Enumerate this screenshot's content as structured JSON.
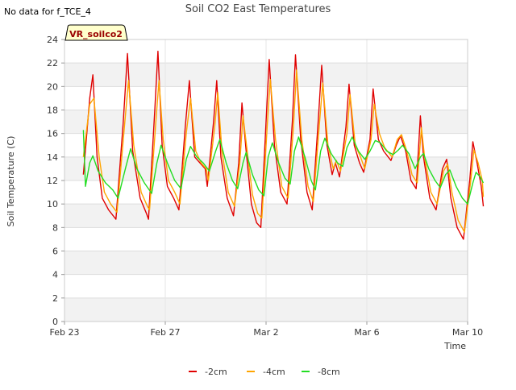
{
  "note": "No data for f_TCE_4",
  "chart_data": {
    "type": "line",
    "title": "Soil CO2 East Temperatures",
    "xlabel": "Time",
    "ylabel": "Soil Temperature (C)",
    "badge": "VR_soilco2",
    "ylim": [
      0,
      24
    ],
    "yticks": [
      0,
      2,
      4,
      6,
      8,
      10,
      12,
      14,
      16,
      18,
      20,
      22,
      24
    ],
    "xlim": [
      "2024-02-23",
      "2024-03-10"
    ],
    "xticks": [
      {
        "date": "2024-02-23",
        "label": "Feb 23"
      },
      {
        "date": "2024-02-27",
        "label": "Feb 27"
      },
      {
        "date": "2024-03-02",
        "label": "Mar 2"
      },
      {
        "date": "2024-03-06",
        "label": "Mar 6"
      },
      {
        "date": "2024-03-10",
        "label": "Mar 10"
      }
    ],
    "grid": true,
    "legend_position": "bottom",
    "series": [
      {
        "name": "-2cm",
        "color": "#e00000",
        "points": [
          [
            "2024-02-23T18:00",
            12.5
          ],
          [
            "2024-02-24T00:00",
            19.0
          ],
          [
            "2024-02-24T03:00",
            21.0
          ],
          [
            "2024-02-24T07:00",
            14.0
          ],
          [
            "2024-02-24T12:00",
            10.5
          ],
          [
            "2024-02-24T18:00",
            9.5
          ],
          [
            "2024-02-25T01:00",
            8.7
          ],
          [
            "2024-02-25T08:00",
            17.0
          ],
          [
            "2024-02-25T12:00",
            22.8
          ],
          [
            "2024-02-25T17:00",
            14.5
          ],
          [
            "2024-02-26T00:00",
            10.5
          ],
          [
            "2024-02-26T06:00",
            9.2
          ],
          [
            "2024-02-26T08:00",
            8.7
          ],
          [
            "2024-02-26T14:00",
            18.0
          ],
          [
            "2024-02-26T17:00",
            23.0
          ],
          [
            "2024-02-26T21:00",
            15.0
          ],
          [
            "2024-02-27T02:00",
            11.5
          ],
          [
            "2024-02-27T08:00",
            10.5
          ],
          [
            "2024-02-27T13:00",
            9.5
          ],
          [
            "2024-02-27T19:00",
            16.5
          ],
          [
            "2024-02-27T23:00",
            20.5
          ],
          [
            "2024-02-28T04:00",
            14.0
          ],
          [
            "2024-02-28T09:00",
            13.5
          ],
          [
            "2024-02-28T14:00",
            13.0
          ],
          [
            "2024-02-28T16:00",
            11.5
          ],
          [
            "2024-02-28T22:00",
            17.0
          ],
          [
            "2024-02-29T01:00",
            20.5
          ],
          [
            "2024-02-29T05:00",
            14.0
          ],
          [
            "2024-02-29T11:00",
            10.5
          ],
          [
            "2024-02-29T17:00",
            9.0
          ],
          [
            "2024-02-29T22:00",
            13.5
          ],
          [
            "2024-03-01T01:00",
            18.6
          ],
          [
            "2024-03-01T05:00",
            14.5
          ],
          [
            "2024-03-01T10:00",
            10.0
          ],
          [
            "2024-03-01T15:00",
            8.4
          ],
          [
            "2024-03-01T19:00",
            8.0
          ],
          [
            "2024-03-02T00:00",
            17.0
          ],
          [
            "2024-03-02T03:00",
            22.3
          ],
          [
            "2024-03-02T08:00",
            15.0
          ],
          [
            "2024-03-02T14:00",
            11.0
          ],
          [
            "2024-03-02T20:00",
            10.0
          ],
          [
            "2024-03-03T01:00",
            17.0
          ],
          [
            "2024-03-03T04:00",
            22.7
          ],
          [
            "2024-03-03T09:00",
            15.5
          ],
          [
            "2024-03-03T15:00",
            11.0
          ],
          [
            "2024-03-03T20:00",
            9.5
          ],
          [
            "2024-03-04T02:00",
            17.5
          ],
          [
            "2024-03-04T05:00",
            21.8
          ],
          [
            "2024-03-04T10:00",
            15.0
          ],
          [
            "2024-03-04T15:00",
            12.5
          ],
          [
            "2024-03-04T18:00",
            13.5
          ],
          [
            "2024-03-04T22:00",
            12.3
          ],
          [
            "2024-03-05T04:00",
            16.5
          ],
          [
            "2024-03-05T07:00",
            20.2
          ],
          [
            "2024-03-05T12:00",
            15.0
          ],
          [
            "2024-03-05T17:00",
            13.5
          ],
          [
            "2024-03-05T21:00",
            12.7
          ],
          [
            "2024-03-06T03:00",
            15.5
          ],
          [
            "2024-03-06T06:00",
            19.8
          ],
          [
            "2024-03-06T11:00",
            15.5
          ],
          [
            "2024-03-06T16:00",
            14.5
          ],
          [
            "2024-03-06T23:00",
            13.7
          ],
          [
            "2024-03-07T04:00",
            15.0
          ],
          [
            "2024-03-07T08:00",
            15.8
          ],
          [
            "2024-03-07T13:00",
            14.5
          ],
          [
            "2024-03-07T18:00",
            12.0
          ],
          [
            "2024-03-07T23:00",
            11.3
          ],
          [
            "2024-03-08T03:00",
            17.5
          ],
          [
            "2024-03-08T06:00",
            14.0
          ],
          [
            "2024-03-08T12:00",
            10.5
          ],
          [
            "2024-03-08T18:00",
            9.5
          ],
          [
            "2024-03-09T00:00",
            13.0
          ],
          [
            "2024-03-09T04:00",
            13.8
          ],
          [
            "2024-03-09T08:00",
            10.5
          ],
          [
            "2024-03-09T14:00",
            8.0
          ],
          [
            "2024-03-09T20:00",
            7.0
          ],
          [
            "2024-03-10T02:00",
            12.0
          ],
          [
            "2024-03-10T05:00",
            15.3
          ],
          [
            "2024-03-10T09:00",
            13.5
          ],
          [
            "2024-03-10T13:00",
            11.5
          ],
          [
            "2024-03-10T15:00",
            9.8
          ]
        ]
      },
      {
        "name": "-4cm",
        "color": "#ffa500",
        "points": [
          [
            "2024-02-23T18:00",
            14.0
          ],
          [
            "2024-02-24T00:00",
            18.5
          ],
          [
            "2024-02-24T04:00",
            19.0
          ],
          [
            "2024-02-24T09:00",
            14.0
          ],
          [
            "2024-02-24T14:00",
            11.0
          ],
          [
            "2024-02-24T20:00",
            10.0
          ],
          [
            "2024-02-25T02:00",
            9.3
          ],
          [
            "2024-02-25T09:00",
            16.5
          ],
          [
            "2024-02-25T13:00",
            20.5
          ],
          [
            "2024-02-25T18:00",
            15.0
          ],
          [
            "2024-02-26T01:00",
            11.0
          ],
          [
            "2024-02-26T07:00",
            9.8
          ],
          [
            "2024-02-26T09:00",
            9.5
          ],
          [
            "2024-02-26T15:00",
            17.0
          ],
          [
            "2024-02-26T18:00",
            20.5
          ],
          [
            "2024-02-26T22:00",
            15.5
          ],
          [
            "2024-02-27T03:00",
            12.0
          ],
          [
            "2024-02-27T09:00",
            11.0
          ],
          [
            "2024-02-27T14:00",
            10.0
          ],
          [
            "2024-02-27T20:00",
            16.0
          ],
          [
            "2024-02-28T00:00",
            19.0
          ],
          [
            "2024-02-28T05:00",
            14.5
          ],
          [
            "2024-02-28T10:00",
            13.5
          ],
          [
            "2024-02-28T15:00",
            13.0
          ],
          [
            "2024-02-28T17:00",
            12.0
          ],
          [
            "2024-02-28T23:00",
            16.5
          ],
          [
            "2024-02-29T02:00",
            19.5
          ],
          [
            "2024-02-29T06:00",
            14.5
          ],
          [
            "2024-02-29T12:00",
            11.0
          ],
          [
            "2024-02-29T18:00",
            9.8
          ],
          [
            "2024-02-29T23:00",
            13.5
          ],
          [
            "2024-03-01T02:00",
            17.5
          ],
          [
            "2024-03-01T06:00",
            14.5
          ],
          [
            "2024-03-01T11:00",
            10.8
          ],
          [
            "2024-03-01T16:00",
            9.2
          ],
          [
            "2024-03-01T20:00",
            8.8
          ],
          [
            "2024-03-02T01:00",
            16.5
          ],
          [
            "2024-03-02T04:00",
            20.6
          ],
          [
            "2024-03-02T09:00",
            15.5
          ],
          [
            "2024-03-02T15:00",
            11.5
          ],
          [
            "2024-03-02T21:00",
            10.5
          ],
          [
            "2024-03-03T02:00",
            16.5
          ],
          [
            "2024-03-03T05:00",
            21.4
          ],
          [
            "2024-03-03T10:00",
            15.5
          ],
          [
            "2024-03-03T16:00",
            11.5
          ],
          [
            "2024-03-03T21:00",
            10.2
          ],
          [
            "2024-03-04T03:00",
            17.0
          ],
          [
            "2024-03-04T06:00",
            20.3
          ],
          [
            "2024-03-04T11:00",
            15.0
          ],
          [
            "2024-03-04T16:00",
            13.0
          ],
          [
            "2024-03-04T19:00",
            13.7
          ],
          [
            "2024-03-04T23:00",
            12.8
          ],
          [
            "2024-03-05T05:00",
            16.0
          ],
          [
            "2024-03-05T08:00",
            19.3
          ],
          [
            "2024-03-05T13:00",
            15.0
          ],
          [
            "2024-03-05T18:00",
            14.0
          ],
          [
            "2024-03-05T22:00",
            13.0
          ],
          [
            "2024-03-06T04:00",
            15.5
          ],
          [
            "2024-03-06T07:00",
            18.5
          ],
          [
            "2024-03-06T12:00",
            16.0
          ],
          [
            "2024-03-06T17:00",
            14.8
          ],
          [
            "2024-03-07T00:00",
            14.0
          ],
          [
            "2024-03-07T05:00",
            15.5
          ],
          [
            "2024-03-07T09:00",
            15.9
          ],
          [
            "2024-03-07T14:00",
            14.5
          ],
          [
            "2024-03-07T19:00",
            12.5
          ],
          [
            "2024-03-08T00:00",
            11.8
          ],
          [
            "2024-03-08T04:00",
            16.5
          ],
          [
            "2024-03-08T07:00",
            14.0
          ],
          [
            "2024-03-08T13:00",
            11.0
          ],
          [
            "2024-03-08T19:00",
            10.0
          ],
          [
            "2024-03-09T01:00",
            12.8
          ],
          [
            "2024-03-09T05:00",
            13.4
          ],
          [
            "2024-03-09T09:00",
            11.0
          ],
          [
            "2024-03-09T15:00",
            8.6
          ],
          [
            "2024-03-09T21:00",
            7.6
          ],
          [
            "2024-03-10T03:00",
            12.0
          ],
          [
            "2024-03-10T06:00",
            14.6
          ],
          [
            "2024-03-10T10:00",
            13.5
          ],
          [
            "2024-03-10T14:00",
            12.0
          ],
          [
            "2024-03-10T15:00",
            10.6
          ]
        ]
      },
      {
        "name": "-8cm",
        "color": "#22dd22",
        "points": [
          [
            "2024-02-23T18:00",
            16.3
          ],
          [
            "2024-02-23T20:00",
            11.5
          ],
          [
            "2024-02-24T00:00",
            13.5
          ],
          [
            "2024-02-24T03:00",
            14.1
          ],
          [
            "2024-02-24T08:00",
            12.8
          ],
          [
            "2024-02-24T15:00",
            11.8
          ],
          [
            "2024-02-24T22:00",
            11.2
          ],
          [
            "2024-02-25T03:00",
            10.5
          ],
          [
            "2024-02-25T10:00",
            13.0
          ],
          [
            "2024-02-25T15:00",
            14.7
          ],
          [
            "2024-02-25T21:00",
            13.0
          ],
          [
            "2024-02-26T04:00",
            11.8
          ],
          [
            "2024-02-26T11:00",
            10.9
          ],
          [
            "2024-02-26T16:00",
            13.5
          ],
          [
            "2024-02-26T20:00",
            15.0
          ],
          [
            "2024-02-27T02:00",
            13.5
          ],
          [
            "2024-02-27T09:00",
            12.0
          ],
          [
            "2024-02-27T15:00",
            11.3
          ],
          [
            "2024-02-27T20:00",
            13.8
          ],
          [
            "2024-02-28T00:00",
            14.9
          ],
          [
            "2024-02-28T06:00",
            14.0
          ],
          [
            "2024-02-28T12:00",
            13.5
          ],
          [
            "2024-02-28T18:00",
            12.8
          ],
          [
            "2024-02-29T00:00",
            14.5
          ],
          [
            "2024-02-29T04:00",
            15.5
          ],
          [
            "2024-02-29T10:00",
            13.5
          ],
          [
            "2024-02-29T16:00",
            12.0
          ],
          [
            "2024-02-29T21:00",
            11.3
          ],
          [
            "2024-03-01T02:00",
            13.5
          ],
          [
            "2024-03-01T05:00",
            14.4
          ],
          [
            "2024-03-01T11:00",
            12.5
          ],
          [
            "2024-03-01T17:00",
            11.2
          ],
          [
            "2024-03-01T22:00",
            10.7
          ],
          [
            "2024-03-02T02:00",
            14.0
          ],
          [
            "2024-03-02T06:00",
            15.2
          ],
          [
            "2024-03-02T12:00",
            13.5
          ],
          [
            "2024-03-02T18:00",
            12.2
          ],
          [
            "2024-03-02T23:00",
            11.7
          ],
          [
            "2024-03-03T03:00",
            14.5
          ],
          [
            "2024-03-03T07:00",
            15.7
          ],
          [
            "2024-03-03T13:00",
            14.0
          ],
          [
            "2024-03-03T19:00",
            12.0
          ],
          [
            "2024-03-03T23:00",
            11.2
          ],
          [
            "2024-03-04T04:00",
            14.5
          ],
          [
            "2024-03-04T08:00",
            15.6
          ],
          [
            "2024-03-04T14:00",
            14.3
          ],
          [
            "2024-03-04T20:00",
            13.5
          ],
          [
            "2024-03-05T01:00",
            13.2
          ],
          [
            "2024-03-05T05:00",
            14.8
          ],
          [
            "2024-03-05T10:00",
            15.7
          ],
          [
            "2024-03-05T16:00",
            14.5
          ],
          [
            "2024-03-05T22:00",
            13.8
          ],
          [
            "2024-03-06T03:00",
            14.5
          ],
          [
            "2024-03-06T08:00",
            15.4
          ],
          [
            "2024-03-06T13:00",
            15.2
          ],
          [
            "2024-03-06T19:00",
            14.5
          ],
          [
            "2024-03-07T01:00",
            14.2
          ],
          [
            "2024-03-07T06:00",
            14.6
          ],
          [
            "2024-03-07T10:00",
            15.0
          ],
          [
            "2024-03-07T16:00",
            14.3
          ],
          [
            "2024-03-07T22:00",
            13.0
          ],
          [
            "2024-03-08T03:00",
            14.0
          ],
          [
            "2024-03-08T06:00",
            14.3
          ],
          [
            "2024-03-08T11:00",
            13.0
          ],
          [
            "2024-03-08T17:00",
            12.0
          ],
          [
            "2024-03-08T22:00",
            11.4
          ],
          [
            "2024-03-09T03:00",
            12.5
          ],
          [
            "2024-03-09T07:00",
            12.9
          ],
          [
            "2024-03-09T13:00",
            11.5
          ],
          [
            "2024-03-09T19:00",
            10.5
          ],
          [
            "2024-03-10T00:00",
            10.0
          ],
          [
            "2024-03-10T05:00",
            11.8
          ],
          [
            "2024-03-10T08:00",
            12.7
          ],
          [
            "2024-03-10T12:00",
            12.3
          ],
          [
            "2024-03-10T15:00",
            11.8
          ]
        ]
      }
    ]
  }
}
